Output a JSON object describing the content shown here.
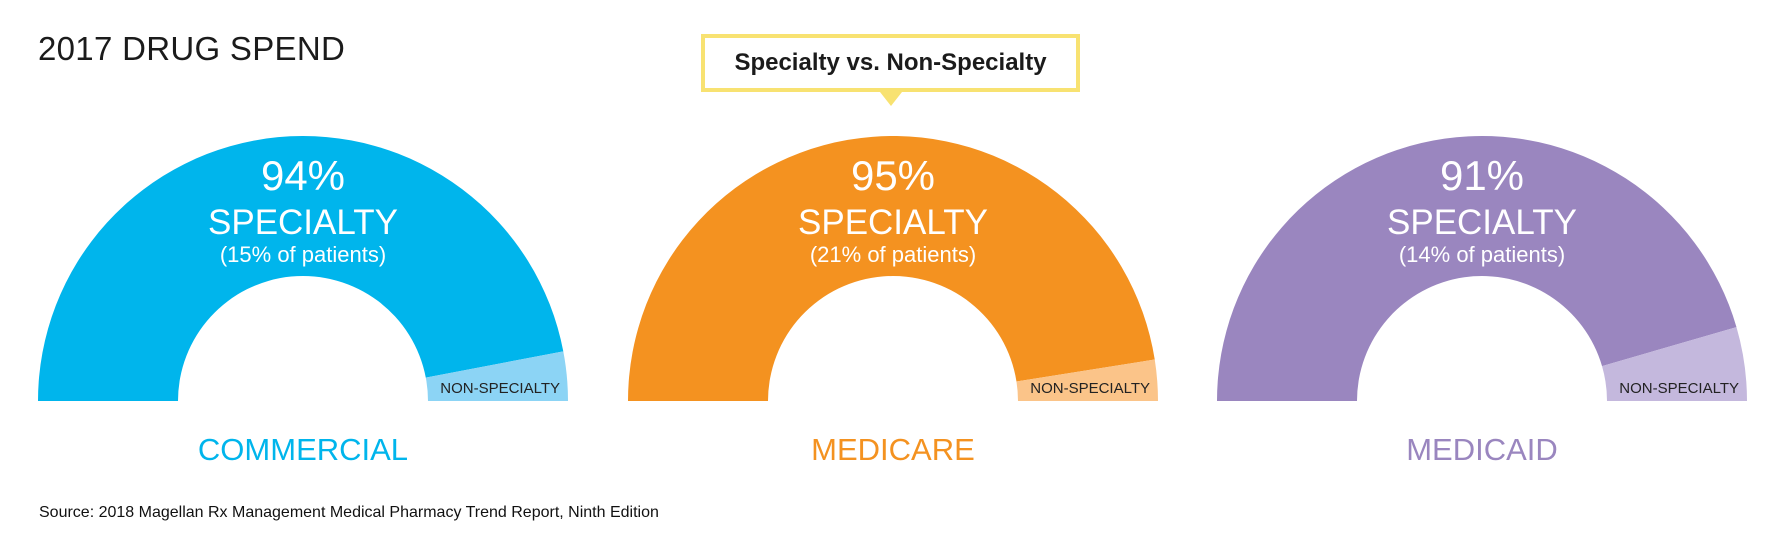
{
  "page": {
    "title": "2017 DRUG SPEND",
    "callout": "Specialty vs. Non-Specialty",
    "source": "Source: 2018 Magellan Rx Management Medical Pharmacy Trend Report, Ninth Edition"
  },
  "colors": {
    "commercial_main": "#00b5ec",
    "commercial_light": "#8cd4f5",
    "medicare_main": "#f49220",
    "medicare_light": "#fbc489",
    "medicaid_main": "#9a86bf",
    "medicaid_light": "#c4b8dd",
    "callout_border": "#f8e271"
  },
  "chart_data": [
    {
      "type": "pie",
      "segment": "COMMERCIAL",
      "slices": [
        {
          "label": "SPECIALTY",
          "value": 94,
          "display": "94%",
          "detail": "(15% of patients)"
        },
        {
          "label": "NON-SPECIALTY",
          "value": 6
        }
      ]
    },
    {
      "type": "pie",
      "segment": "MEDICARE",
      "slices": [
        {
          "label": "SPECIALTY",
          "value": 95,
          "display": "95%",
          "detail": "(21% of patients)"
        },
        {
          "label": "NON-SPECIALTY",
          "value": 5
        }
      ]
    },
    {
      "type": "pie",
      "segment": "MEDICAID",
      "slices": [
        {
          "label": "SPECIALTY",
          "value": 91,
          "display": "91%",
          "detail": "(14% of patients)"
        },
        {
          "label": "NON-SPECIALTY",
          "value": 9
        }
      ]
    }
  ]
}
